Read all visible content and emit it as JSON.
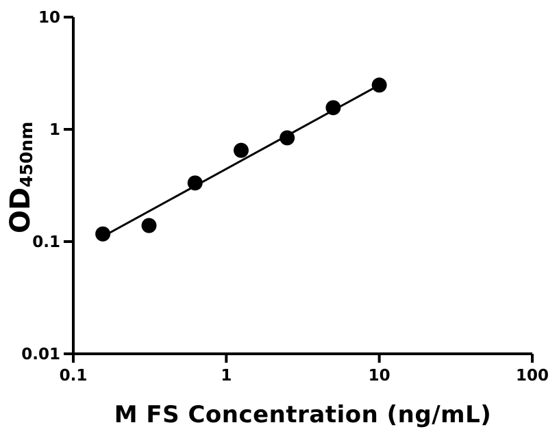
{
  "chart_data": {
    "type": "scatter",
    "title": "",
    "xlabel": "M FS Concentration (ng/mL)",
    "ylabel_main": "OD",
    "ylabel_sub": "450nm",
    "x_scale": "log",
    "y_scale": "log",
    "xlim": [
      0.1,
      100
    ],
    "ylim": [
      0.01,
      10
    ],
    "grid": false,
    "legend": "none",
    "x_ticks": [
      {
        "value": 0.1,
        "label": "0.1"
      },
      {
        "value": 1,
        "label": "1"
      },
      {
        "value": 10,
        "label": "10"
      },
      {
        "value": 100,
        "label": "100"
      }
    ],
    "y_ticks": [
      {
        "value": 0.01,
        "label": "0.01"
      },
      {
        "value": 0.1,
        "label": "0.1"
      },
      {
        "value": 1,
        "label": "1"
      },
      {
        "value": 10,
        "label": "10"
      }
    ],
    "points": [
      {
        "x": 0.156,
        "y": 0.117
      },
      {
        "x": 0.3125,
        "y": 0.139
      },
      {
        "x": 0.625,
        "y": 0.333
      },
      {
        "x": 1.25,
        "y": 0.65
      },
      {
        "x": 2.5,
        "y": 0.84
      },
      {
        "x": 5,
        "y": 1.56
      },
      {
        "x": 10,
        "y": 2.48
      }
    ],
    "trend_line": {
      "x1": 0.158,
      "y1": 0.112,
      "x2": 10,
      "y2": 2.48
    },
    "marker_color": "#000000",
    "line_color": "#000000",
    "axis_color": "#000000",
    "background_color": "#ffffff"
  }
}
